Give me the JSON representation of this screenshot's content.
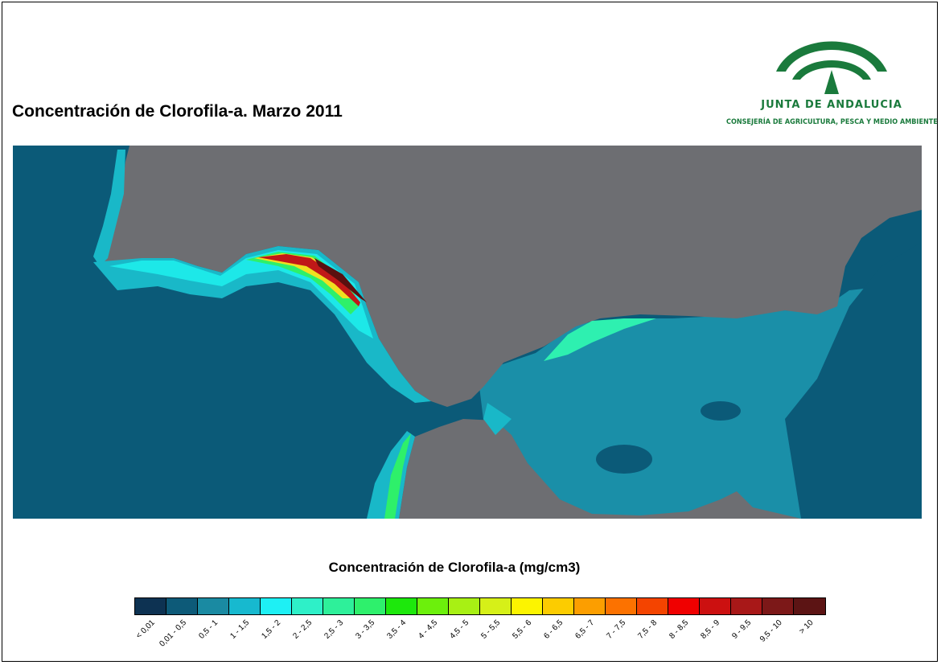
{
  "title": "Concentración de Clorofila-a. Marzo 2011",
  "logo": {
    "name": "JUNTA DE ANDALUCIA",
    "department": "CONSEJERÍA DE AGRICULTURA, PESCA Y MEDIO AMBIENTE",
    "color": "#1a7a3c"
  },
  "map": {
    "land_color": "#6d6e72",
    "sea_colors": [
      "#0b5a78",
      "#1a8fa8",
      "#19c0d0",
      "#1de8e8",
      "#2af0b0",
      "#2ef06a",
      "#3ee83e",
      "#a0f020",
      "#f0e020",
      "#f0a010",
      "#e04010",
      "#c01818",
      "#5a1010"
    ]
  },
  "legend": {
    "title": "Concentración de Clorofila-a (mg/cm3)",
    "classes": [
      {
        "label": "< 0,01",
        "color": "#0d3252"
      },
      {
        "label": "0,01 - 0,5",
        "color": "#0d5a78"
      },
      {
        "label": "0,5 - 1",
        "color": "#1a8aa2"
      },
      {
        "label": "1 - 1,5",
        "color": "#17b9cf"
      },
      {
        "label": "1,5 - 2",
        "color": "#1ef0f4"
      },
      {
        "label": "2 - 2,5",
        "color": "#2ef0c8"
      },
      {
        "label": "2,5 - 3",
        "color": "#2ef09a"
      },
      {
        "label": "3 - 3,5",
        "color": "#2ef06c"
      },
      {
        "label": "3,5 - 4",
        "color": "#1de80c"
      },
      {
        "label": "4 - 4,5",
        "color": "#6cf00c"
      },
      {
        "label": "4,5 - 5",
        "color": "#a8f014"
      },
      {
        "label": "5 - 5,5",
        "color": "#d6f018"
      },
      {
        "label": "5,5 - 6",
        "color": "#fcf400"
      },
      {
        "label": "6 - 6,5",
        "color": "#fccc00"
      },
      {
        "label": "6,5 - 7",
        "color": "#fc9e00"
      },
      {
        "label": "7 - 7,5",
        "color": "#fc7200"
      },
      {
        "label": "7,5 - 8",
        "color": "#f44400"
      },
      {
        "label": "8 - 8,5",
        "color": "#f00000"
      },
      {
        "label": "8,5 - 9",
        "color": "#cc1010"
      },
      {
        "label": "9 - 9,5",
        "color": "#a81818"
      },
      {
        "label": "9,5 - 10",
        "color": "#7c1818"
      },
      {
        "label": "> 10",
        "color": "#5c1414"
      }
    ]
  }
}
